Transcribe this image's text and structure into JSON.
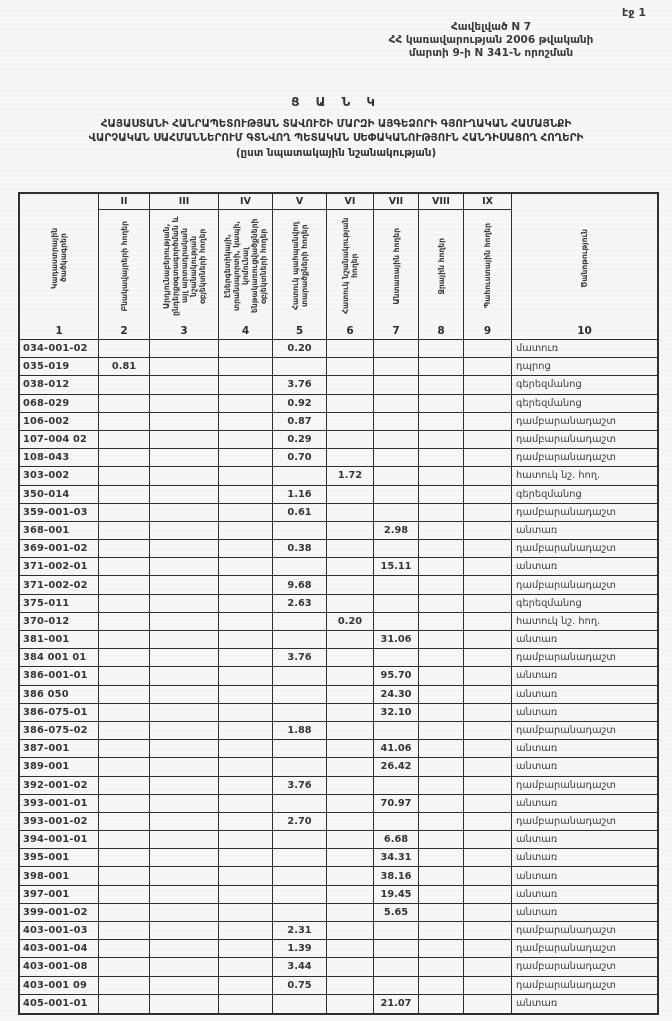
{
  "page": {
    "page_number_label": "էջ 1"
  },
  "header": {
    "appendix_lines": [
      "Հավելված N 7",
      "ՀՀ կառավարության 2006 թվականի",
      "մարտի 9-ի N 341-Ն որոշման"
    ]
  },
  "title": {
    "main": "Ց Ա Ն Կ",
    "subtitle_line1": "ՀԱՅԱՍՏԱՆԻ ՀԱՆՐԱՊԵՏՈՒԹՅԱՆ ՏԱՎՈՒՇԻ ՄԱՐԶԻ ԱՅԳԵՁՈՐԻ ԳՅՈՒՂԱԿԱՆ ՀԱՄԱՅՆՔԻ",
    "subtitle_line2": "ՎԱՐՉԱԿԱՆ ՍԱՀՄԱՆՆԵՐՈՒՄ ԳՏՆՎՈՂ ՊԵՏԱԿԱՆ ՍԵՓԱԿԱՆՈՒԹՅՈՒՆ ՀԱՆԴԻՍԱՑՈՂ ՀՈՂԵՐԻ",
    "subtitle_line3": "(ըստ նպատակային նշանակության)"
  },
  "table": {
    "roman_numerals": [
      "II",
      "III",
      "IV",
      "V",
      "VI",
      "VII",
      "VIII",
      "IX"
    ],
    "column_headers": [
      "Կադաստրային ծածկագրեր",
      "Բնակավայրերի հողեր",
      "Արդյունաբերության, ընդերքօգտագործման և այլ արտադրական նշանակության օբյեկտների հողեր",
      "Էներգետիկայի, տրանսպորտի, կապի, կոմունալ ենթակառուցվածքների օբյեկտների հողեր",
      "Հատուկ պահպանվող տարածքների հողեր",
      "Հատուկ նշանակության հողեր",
      "Անտառային հողեր",
      "Ջրային հողեր",
      "Պահուստային հողեր",
      "Ծանոթություն"
    ],
    "column_numbers": [
      "1",
      "2",
      "3",
      "4",
      "5",
      "6",
      "7",
      "8",
      "9",
      "10"
    ],
    "rows": [
      {
        "code": "034-001-02",
        "values": {
          "5": "0.20"
        },
        "note": "մատուռ"
      },
      {
        "code": "035-019",
        "values": {
          "2": "0.81"
        },
        "note": "դպրոց"
      },
      {
        "code": "038-012",
        "values": {
          "5": "3.76"
        },
        "note": "գերեզմանոց"
      },
      {
        "code": "068-029",
        "values": {
          "5": "0.92"
        },
        "note": "գերեզմանոց"
      },
      {
        "code": "106-002",
        "values": {
          "5": "0.87"
        },
        "note": "դամբարանադաշտ"
      },
      {
        "code": "107-004 02",
        "values": {
          "5": "0.29"
        },
        "note": "դամբարանադաշտ"
      },
      {
        "code": "108-043",
        "values": {
          "5": "0.70"
        },
        "note": "դամբարանադաշտ"
      },
      {
        "code": "303-002",
        "values": {
          "6": "1.72"
        },
        "note": "հատուկ նշ. հող."
      },
      {
        "code": "350-014",
        "values": {
          "5": "1.16"
        },
        "note": "գերեզմանոց"
      },
      {
        "code": "359-001-03",
        "values": {
          "5": "0.61"
        },
        "note": "դամբարանադաշտ"
      },
      {
        "code": "368-001",
        "values": {
          "7": "2.98"
        },
        "note": "անտառ"
      },
      {
        "code": "369-001-02",
        "values": {
          "5": "0.38"
        },
        "note": "դամբարանադաշտ"
      },
      {
        "code": "371-002-01",
        "values": {
          "7": "15.11"
        },
        "note": "անտառ"
      },
      {
        "code": "371-002-02",
        "values": {
          "5": "9.68"
        },
        "note": "դամբարանադաշտ"
      },
      {
        "code": "375-011",
        "values": {
          "5": "2.63"
        },
        "note": "գերեզմանոց"
      },
      {
        "code": "370-012",
        "values": {
          "6": "0.20"
        },
        "note": "հատուկ նշ. հող."
      },
      {
        "code": "381-001",
        "values": {
          "7": "31.06"
        },
        "note": "անտառ"
      },
      {
        "code": "384 001 01",
        "values": {
          "5": "3.76"
        },
        "note": "դամբարանադաշտ"
      },
      {
        "code": "386-001-01",
        "values": {
          "7": "95.70"
        },
        "note": "անտառ"
      },
      {
        "code": "386 050",
        "values": {
          "7": "24.30"
        },
        "note": "անտառ"
      },
      {
        "code": "386-075-01",
        "values": {
          "7": "32.10"
        },
        "note": "անտառ"
      },
      {
        "code": "386-075-02",
        "values": {
          "5": "1.88"
        },
        "note": "դամբարանադաշտ"
      },
      {
        "code": "387-001",
        "values": {
          "7": "41.06"
        },
        "note": "անտառ"
      },
      {
        "code": "389-001",
        "values": {
          "7": "26.42"
        },
        "note": "անտառ"
      },
      {
        "code": "392-001-02",
        "values": {
          "5": "3.76"
        },
        "note": "դամբարանադաշտ"
      },
      {
        "code": "393-001-01",
        "values": {
          "7": "70.97"
        },
        "note": "անտառ"
      },
      {
        "code": "393-001-02",
        "values": {
          "5": "2.70"
        },
        "note": "դամբարանադաշտ"
      },
      {
        "code": "394-001-01",
        "values": {
          "7": "6.68"
        },
        "note": "անտառ"
      },
      {
        "code": "395-001",
        "values": {
          "7": "34.31"
        },
        "note": "անտառ"
      },
      {
        "code": "398-001",
        "values": {
          "7": "38.16"
        },
        "note": "անտառ"
      },
      {
        "code": "397-001",
        "values": {
          "7": "19.45"
        },
        "note": "անտառ"
      },
      {
        "code": "399-001-02",
        "values": {
          "7": "5.65"
        },
        "note": "անտառ"
      },
      {
        "code": "403-001-03",
        "values": {
          "5": "2.31"
        },
        "note": "դամբարանադաշտ"
      },
      {
        "code": "403-001-04",
        "values": {
          "5": "1.39"
        },
        "note": "դամբարանադաշտ"
      },
      {
        "code": "403-001-08",
        "values": {
          "5": "3.44"
        },
        "note": "դամբարանադաշտ"
      },
      {
        "code": "403-001 09",
        "values": {
          "5": "0.75"
        },
        "note": "դամբարանադաշտ"
      },
      {
        "code": "405-001-01",
        "values": {
          "7": "21.07"
        },
        "note": "անտառ"
      }
    ]
  }
}
